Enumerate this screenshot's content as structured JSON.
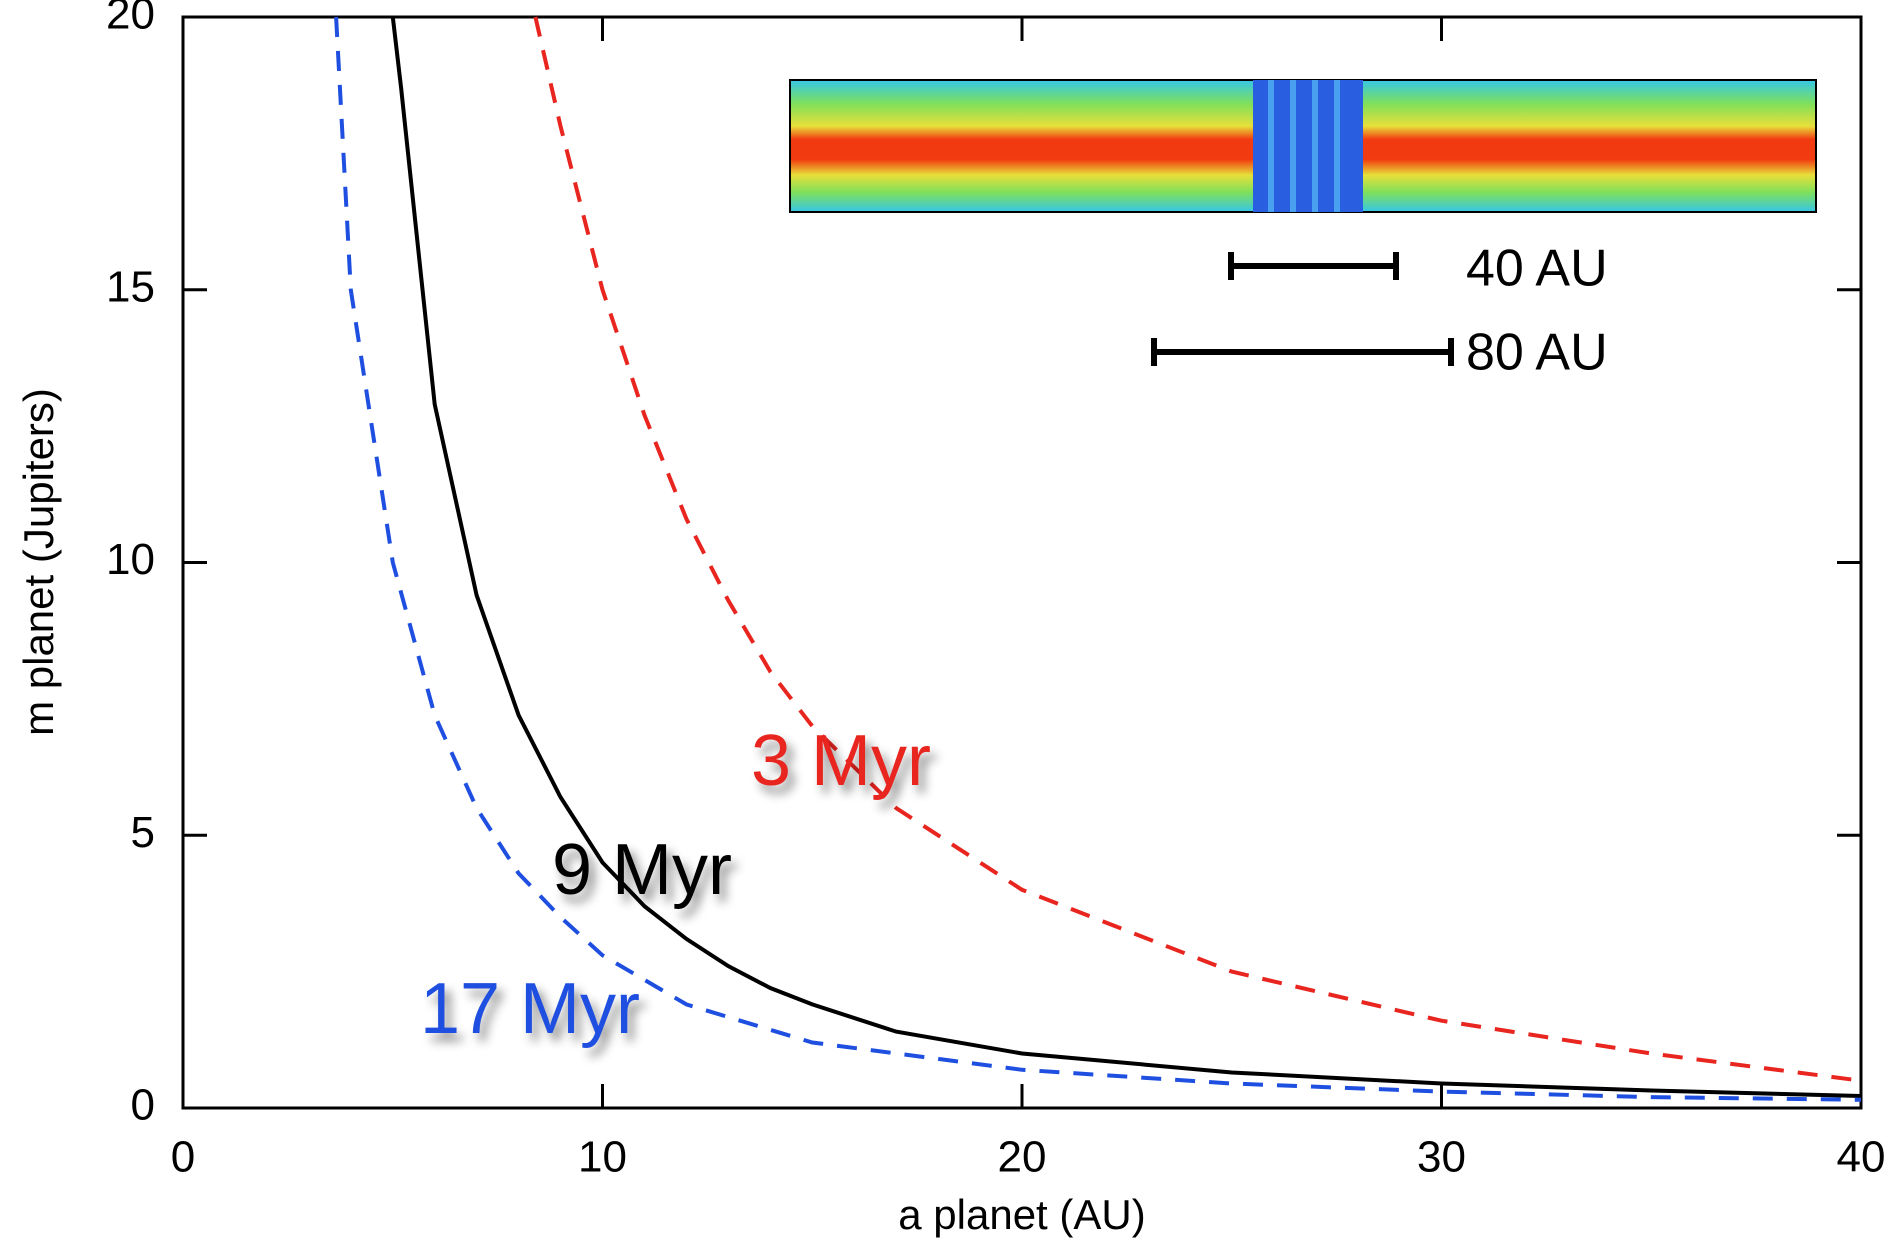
{
  "chart_data": {
    "type": "line",
    "x_label": "a planet (AU)",
    "y_label": "m planet (Jupiters)",
    "xlim": [
      0,
      40
    ],
    "ylim": [
      0,
      20
    ],
    "xticks": [
      0,
      10,
      20,
      30,
      40
    ],
    "yticks": [
      0,
      5,
      10,
      15,
      20
    ],
    "series": [
      {
        "name": "3 Myr",
        "color": "#e8251f",
        "dashed": true,
        "x": [
          8.4,
          9,
          10,
          11,
          12,
          13,
          14,
          15,
          17,
          20,
          25,
          30,
          35,
          40
        ],
        "values": [
          20,
          18,
          15,
          12.7,
          10.8,
          9.3,
          8.0,
          7.0,
          5.5,
          4.0,
          2.5,
          1.6,
          1.0,
          0.5
        ]
      },
      {
        "name": "9 Myr",
        "color": "#000000",
        "dashed": false,
        "x": [
          5,
          5.2,
          6,
          7,
          8,
          9,
          10,
          11,
          12,
          13,
          14,
          15,
          17,
          20,
          25,
          30,
          35,
          40
        ],
        "values": [
          20,
          18.7,
          12.9,
          9.4,
          7.2,
          5.7,
          4.5,
          3.7,
          3.1,
          2.6,
          2.2,
          1.9,
          1.4,
          1.0,
          0.65,
          0.45,
          0.32,
          0.22
        ]
      },
      {
        "name": "17 Myr",
        "color": "#1f4fe0",
        "dashed": true,
        "x": [
          3.65,
          4,
          5,
          6,
          7,
          8,
          9,
          10,
          12,
          15,
          20,
          25,
          30,
          35,
          40
        ],
        "values": [
          20,
          15,
          10,
          7.2,
          5.5,
          4.3,
          3.5,
          2.8,
          1.9,
          1.2,
          0.7,
          0.45,
          0.3,
          0.2,
          0.15
        ]
      }
    ],
    "scale_bars": [
      "40 AU",
      "80 AU"
    ]
  }
}
